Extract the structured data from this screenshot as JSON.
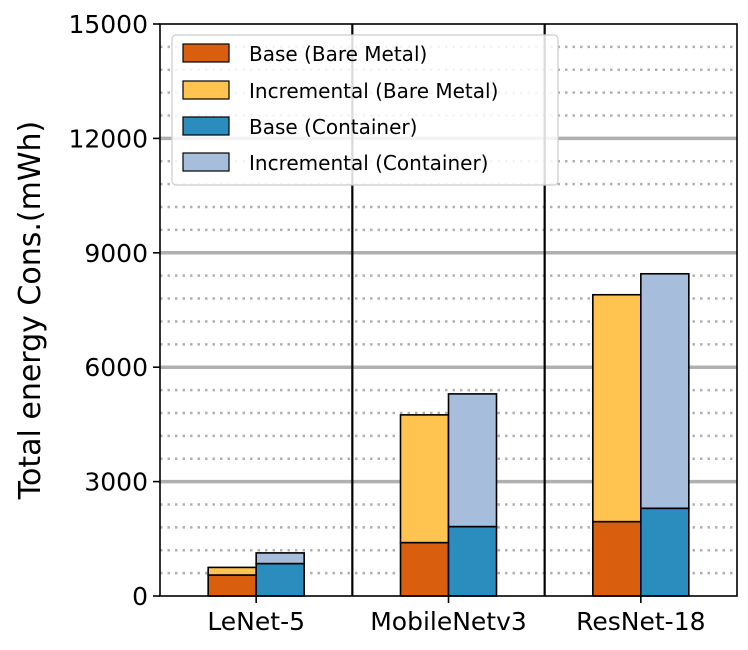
{
  "chart_data": {
    "type": "bar",
    "stacked": true,
    "grouped": true,
    "categories": [
      "LeNet-5",
      "MobileNetv3",
      "ResNet-18"
    ],
    "groups": [
      "Bare Metal",
      "Container"
    ],
    "series": [
      {
        "name": "Base (Bare Metal)",
        "group": "Bare Metal",
        "role": "base",
        "color": "#d95f0e",
        "values": [
          550,
          1400,
          1950
        ]
      },
      {
        "name": "Incremental (Bare Metal)",
        "group": "Bare Metal",
        "role": "incremental",
        "color": "#fec44f",
        "values": [
          200,
          3350,
          5950
        ]
      },
      {
        "name": "Base (Container)",
        "group": "Container",
        "role": "base",
        "color": "#2b8cbe",
        "values": [
          850,
          1820,
          2300
        ]
      },
      {
        "name": "Incremental (Container)",
        "group": "Container",
        "role": "incremental",
        "color": "#a6bddb",
        "values": [
          280,
          3480,
          6150
        ]
      }
    ],
    "xlabel": "",
    "ylabel": "Total energy Cons.(mWh)",
    "ylim": [
      0,
      15000
    ],
    "yticks": [
      0,
      3000,
      6000,
      9000,
      12000,
      15000
    ],
    "ytick_labels": [
      "0",
      "3000",
      "6000",
      "9000",
      "12000",
      "15000"
    ],
    "grid": {
      "major": true,
      "minor": true,
      "major_color": "#b0b0b0",
      "minor_color": "#b0b0b0"
    },
    "legend_position": "top-left"
  }
}
